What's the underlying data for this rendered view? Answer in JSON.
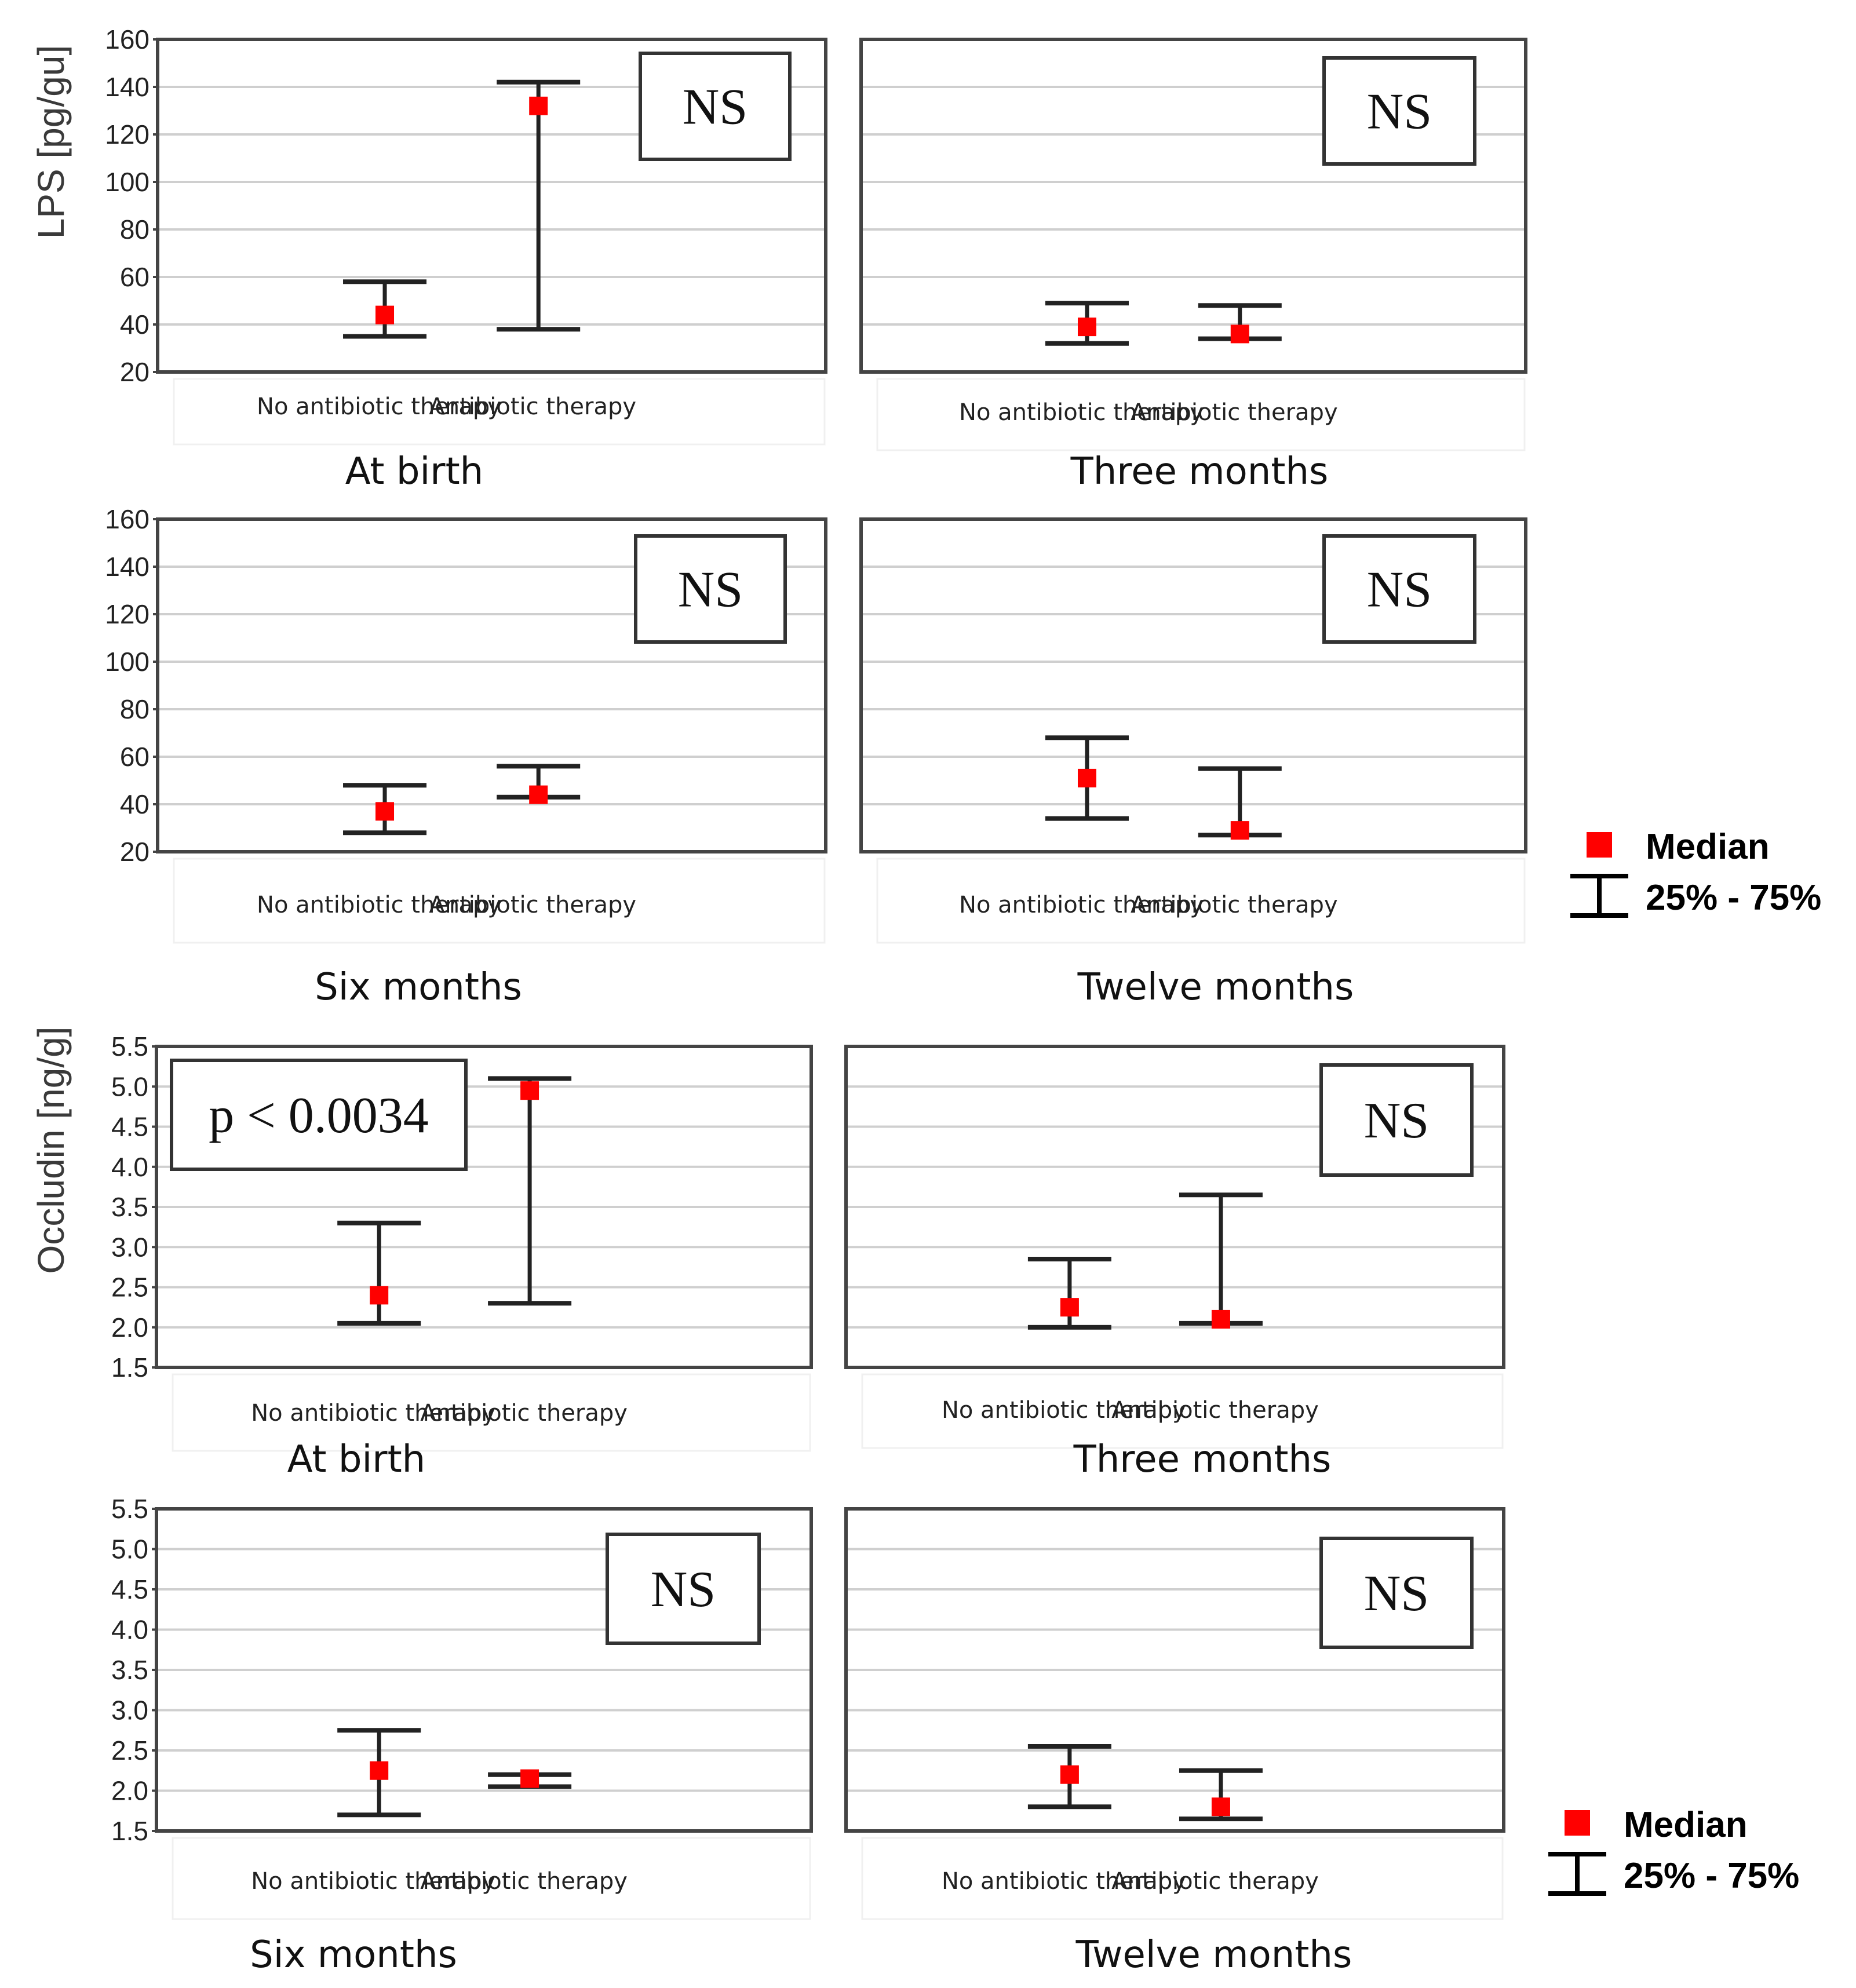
{
  "chart_data": [
    {
      "type": "scatter",
      "variant": "median-with-iqr-errorbars",
      "panel": "lps-at-birth",
      "title": "At birth",
      "ylabel": "LPS [pg/gu]",
      "ylim": [
        20,
        160
      ],
      "yticks": [
        "20",
        "40",
        "60",
        "80",
        "100",
        "120",
        "140",
        "160"
      ],
      "grid": true,
      "categories": [
        "No antibiotic  therapy",
        "Antibiotic therapy"
      ],
      "series": [
        {
          "name": "Median",
          "values": [
            44,
            132
          ]
        },
        {
          "name": "25%",
          "values": [
            35,
            38
          ]
        },
        {
          "name": "75%",
          "values": [
            58,
            142
          ]
        }
      ],
      "annotation": "NS"
    },
    {
      "type": "scatter",
      "variant": "median-with-iqr-errorbars",
      "panel": "lps-three-months",
      "title": "Three months",
      "ylabel": "",
      "ylim": [
        20,
        160
      ],
      "yticks": [],
      "grid": true,
      "categories": [
        "No antibiotic  therapy",
        "Antibiotic therapy"
      ],
      "series": [
        {
          "name": "Median",
          "values": [
            39,
            36
          ]
        },
        {
          "name": "25%",
          "values": [
            32,
            34
          ]
        },
        {
          "name": "75%",
          "values": [
            49,
            48
          ]
        }
      ],
      "annotation": "NS"
    },
    {
      "type": "scatter",
      "variant": "median-with-iqr-errorbars",
      "panel": "lps-six-months",
      "title": "Six months",
      "ylabel": "",
      "ylim": [
        20,
        160
      ],
      "yticks": [
        "20",
        "40",
        "60",
        "80",
        "100",
        "120",
        "140",
        "160"
      ],
      "grid": true,
      "categories": [
        "No antibiotic  therapy",
        "Antibiotic therapy"
      ],
      "series": [
        {
          "name": "Median",
          "values": [
            37,
            44
          ]
        },
        {
          "name": "25%",
          "values": [
            28,
            43
          ]
        },
        {
          "name": "75%",
          "values": [
            48,
            56
          ]
        }
      ],
      "annotation": "NS"
    },
    {
      "type": "scatter",
      "variant": "median-with-iqr-errorbars",
      "panel": "lps-twelve-months",
      "title": "Twelve months",
      "ylabel": "",
      "ylim": [
        20,
        160
      ],
      "yticks": [],
      "grid": true,
      "categories": [
        "No antibiotic  therapy",
        "Antibiotic therapy"
      ],
      "series": [
        {
          "name": "Median",
          "values": [
            51,
            29
          ]
        },
        {
          "name": "25%",
          "values": [
            34,
            27
          ]
        },
        {
          "name": "75%",
          "values": [
            68,
            55
          ]
        }
      ],
      "annotation": "NS"
    },
    {
      "type": "scatter",
      "variant": "median-with-iqr-errorbars",
      "panel": "occludin-at-birth",
      "title": "At birth",
      "ylabel": "Occludin [ng/g]",
      "ylim": [
        1.5,
        5.5
      ],
      "yticks": [
        "1.5",
        "2.0",
        "2.5",
        "3.0",
        "3.5",
        "4.0",
        "4.5",
        "5.0",
        "5.5"
      ],
      "grid": true,
      "categories": [
        "No antibiotic  therapy",
        "Antibiotic therapy"
      ],
      "series": [
        {
          "name": "Median",
          "values": [
            2.4,
            4.95
          ]
        },
        {
          "name": "25%",
          "values": [
            2.05,
            2.3
          ]
        },
        {
          "name": "75%",
          "values": [
            3.3,
            5.1
          ]
        }
      ],
      "annotation": "p < 0.0034"
    },
    {
      "type": "scatter",
      "variant": "median-with-iqr-errorbars",
      "panel": "occludin-three-months",
      "title": "Three months",
      "ylabel": "",
      "ylim": [
        1.5,
        5.5
      ],
      "yticks": [],
      "grid": true,
      "categories": [
        "No antibiotic  therapy",
        "Antibiotic therapy"
      ],
      "series": [
        {
          "name": "Median",
          "values": [
            2.25,
            2.1
          ]
        },
        {
          "name": "25%",
          "values": [
            2.0,
            2.05
          ]
        },
        {
          "name": "75%",
          "values": [
            2.85,
            3.65
          ]
        }
      ],
      "annotation": "NS"
    },
    {
      "type": "scatter",
      "variant": "median-with-iqr-errorbars",
      "panel": "occludin-six-months",
      "title": "Six months",
      "ylabel": "",
      "ylim": [
        1.5,
        5.5
      ],
      "yticks": [
        "1.5",
        "2.0",
        "2.5",
        "3.0",
        "3.5",
        "4.0",
        "4.5",
        "5.0",
        "5.5"
      ],
      "grid": true,
      "categories": [
        "No antibiotic  therapy",
        "Antibiotic therapy"
      ],
      "series": [
        {
          "name": "Median",
          "values": [
            2.25,
            2.15
          ]
        },
        {
          "name": "25%",
          "values": [
            1.7,
            2.05
          ]
        },
        {
          "name": "75%",
          "values": [
            2.75,
            2.2
          ]
        }
      ],
      "annotation": "NS"
    },
    {
      "type": "scatter",
      "variant": "median-with-iqr-errorbars",
      "panel": "occludin-twelve-months",
      "title": "Twelve months",
      "ylabel": "",
      "ylim": [
        1.5,
        5.5
      ],
      "yticks": [],
      "grid": true,
      "categories": [
        "No antibiotic  therapy",
        "Antibiotic therapy"
      ],
      "series": [
        {
          "name": "Median",
          "values": [
            2.2,
            1.8
          ]
        },
        {
          "name": "25%",
          "values": [
            1.8,
            1.65
          ]
        },
        {
          "name": "75%",
          "values": [
            2.55,
            2.25
          ]
        }
      ],
      "annotation": "NS"
    }
  ],
  "legends": [
    {
      "median_label": "Median",
      "range_label": "25% - 75%"
    },
    {
      "median_label": "Median",
      "range_label": "25% - 75%"
    }
  ],
  "colors": {
    "median": "#ff0000",
    "whisker": "#222222",
    "grid": "#cfcfcf",
    "frame": "#444444"
  }
}
